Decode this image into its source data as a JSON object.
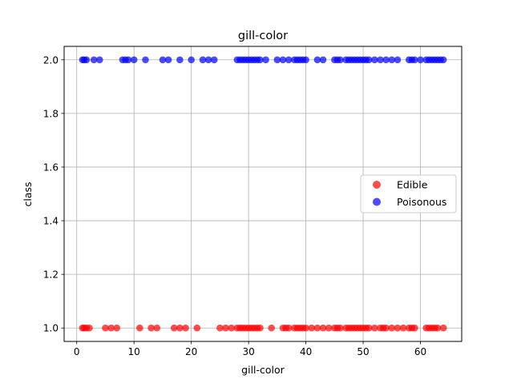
{
  "chart_data": {
    "type": "scatter",
    "title": "gill-color",
    "xlabel": "gill-color",
    "ylabel": "class",
    "xlim": [
      -2.2,
      67.2
    ],
    "ylim": [
      0.95,
      2.05
    ],
    "x_ticks": [
      0,
      10,
      20,
      30,
      40,
      50,
      60
    ],
    "y_ticks": [
      1.0,
      1.2,
      1.4,
      1.6,
      1.8,
      2.0
    ],
    "x_tick_labels": [
      "0",
      "10",
      "20",
      "30",
      "40",
      "50",
      "60"
    ],
    "y_tick_labels": [
      "1.0",
      "1.2",
      "1.4",
      "1.6",
      "1.8",
      "2.0"
    ],
    "grid": true,
    "legend_position": "center-right",
    "series": [
      {
        "name": "Edible",
        "color": "#ff0000",
        "y": 1.0,
        "x": [
          1,
          1.3,
          1.7,
          2.2,
          5,
          6,
          7,
          11,
          13,
          14,
          17,
          18,
          19,
          21,
          25,
          26,
          27,
          28,
          28.5,
          29,
          29.5,
          30,
          30.5,
          31,
          31.5,
          32,
          34,
          36,
          36.5,
          37,
          38,
          38.5,
          39,
          39.5,
          40,
          41,
          42,
          43,
          44,
          45,
          45.5,
          46,
          47,
          47.5,
          48,
          48.5,
          49,
          49.5,
          50,
          50.5,
          51,
          52,
          53,
          53.5,
          54,
          55,
          56,
          57,
          58,
          58.5,
          59,
          61,
          61.5,
          62,
          62.5,
          63,
          64
        ]
      },
      {
        "name": "Poisonous",
        "color": "#0000ff",
        "y": 2.0,
        "x": [
          1,
          1.3,
          1.7,
          3,
          4,
          8,
          8.5,
          9,
          10,
          12,
          15,
          16,
          18,
          20,
          22,
          23,
          24,
          28,
          28.5,
          29,
          29.5,
          30,
          30.5,
          31,
          31.5,
          32,
          33,
          35,
          36,
          37,
          38,
          38.5,
          39,
          39.5,
          40,
          42,
          43,
          45,
          45.5,
          46,
          47,
          47.5,
          48,
          48.5,
          49,
          49.5,
          50,
          50.5,
          51,
          52,
          53,
          54,
          55,
          56,
          58,
          58.5,
          59,
          60,
          61,
          61.5,
          62,
          62.5,
          63,
          63.5,
          64
        ]
      }
    ]
  }
}
